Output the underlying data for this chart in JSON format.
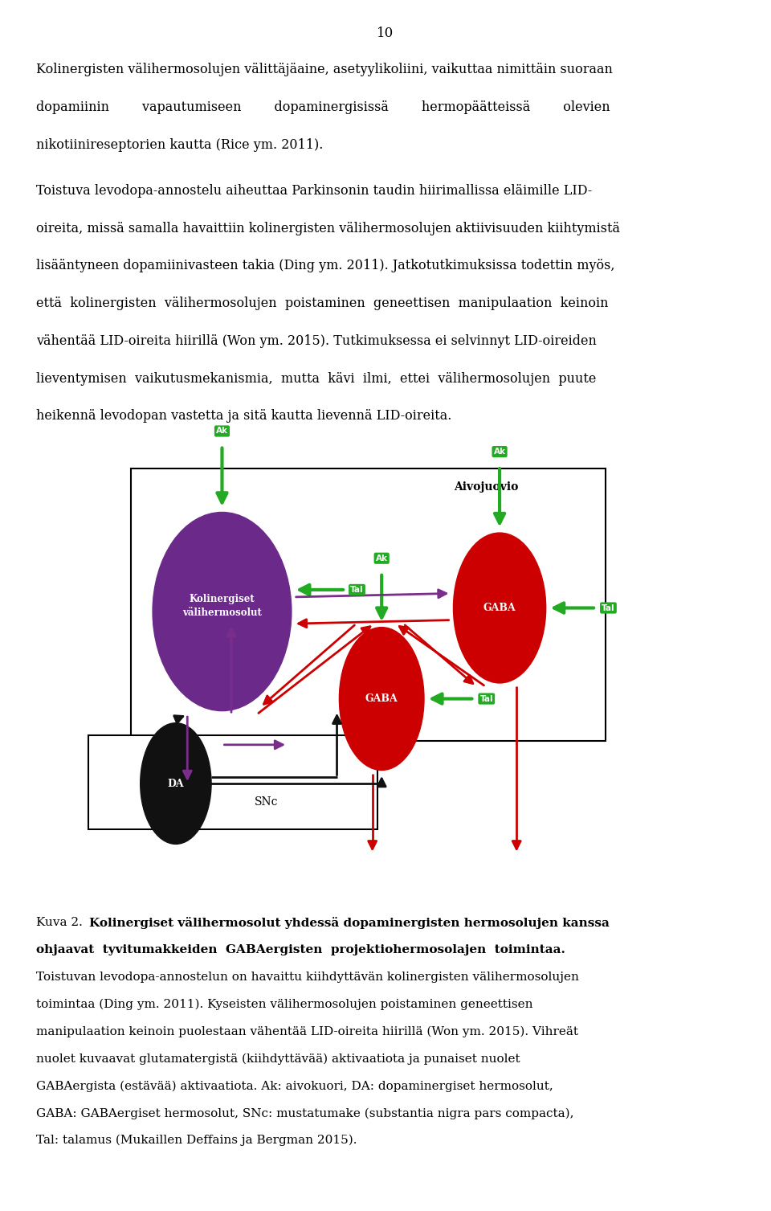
{
  "page_number": "10",
  "p1_line1": "Kolinergisten välihermosolujen välittäjäaine, asetyylikoliini, vaikuttaa nimittäin suoraan",
  "p1_line2": "dopamiinin        vapautumiseen        dopaminergisissä        hermopäätteissä        olevien",
  "p1_line3": "nikotiinireseptorien kautta (Rice ym. 2011).",
  "p2_line1": "Toistuva levodopa-annostelu aiheuttaa Parkinsonin taudin hiirimallissa eläimille LID-",
  "p2_line2": "oireita, missä samalla havaittiin kolinergisten välihermosolujen aktiivisuuden kiihtymistä",
  "p2_line3": "lisääntyneen dopamiinivasteen takia (Ding ym. 2011). Jatkotutkimuksissa todettin myös,",
  "p2_line4": "että  kolinergisten  välihermosolujen  poistaminen  geneettisen  manipulaation  keinoin",
  "p2_line5": "vähentää LID-oireita hiirillä (Won ym. 2015). Tutkimuksessa ei selvinnyt LID-oireiden",
  "p2_line6": "lieventymisen  vaikutusmekanismia,  mutta  kävi  ilmi,  ettei  välihermosolujen  puute",
  "p2_line7": "heikennä levodopan vastetta ja sitä kautta lievennä LID-oireita.",
  "cap_prefix": "Kuva 2.",
  "cap_bold1": "Kolinergiset välihermosolut yhdessä dopaminergisten hermosolujen kanssa",
  "cap_bold2": "ohjaavat  tyvitumakkeiden  GABAergisten  projektiohermosolajen  toimintaa.",
  "cap_n1": "Toistuvan levodopa-annostelun on havaittu kiihdyttävän kolinergisten välihermosolujen",
  "cap_n2": "toimintaa (Ding ym. 2011). Kyseisten välihermosolujen poistaminen geneettisen",
  "cap_n3": "manipulaation keinoin puolestaan vähentää LID-oireita hiirillä (Won ym. 2015). Vihreät",
  "cap_n4": "nuolet kuvaavat glutamatergistä (kiihdyttävää) aktivaatiota ja punaiset nuolet",
  "cap_n5": "GABAergista (estävää) aktivaatiota. Ak: aivokuori, DA: dopaminergiset hermosolut,",
  "cap_n6": "GABA: GABAergiset hermosolut, SNc: mustatumake (substantia nigra pars compacta),",
  "cap_n7": "Tal: talamus (Mukaillen Deffains ja Bergman 2015).",
  "aivojuovio": "Aivojuovio",
  "snc": "SNc",
  "purple_label": "Kolinergiset\nvälihermosolut",
  "gaba_label": "GABA",
  "da_label": "DA",
  "green_color": "#22AA22",
  "red_color": "#CC0000",
  "purple_color": "#6B2A8A",
  "black_color": "#111111",
  "purple_arrow_color": "#7B2D8B",
  "text_fontsize": 11.5,
  "cap_fontsize": 11.0
}
